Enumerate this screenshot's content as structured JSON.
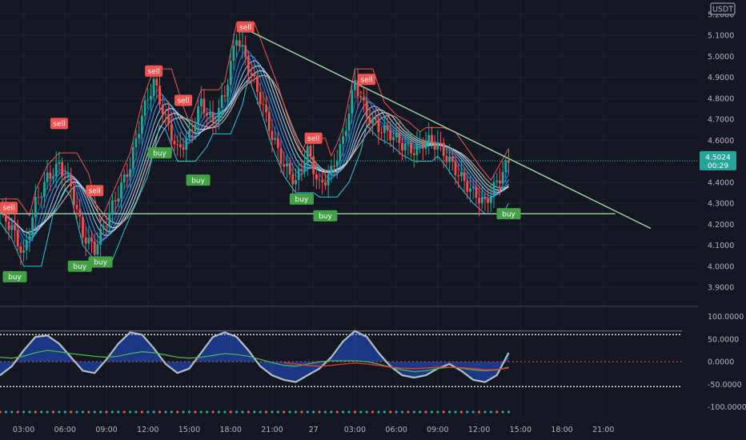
{
  "chart_data": {
    "type": "candlestick",
    "currency": "USDT",
    "price_axis": {
      "ticks": [
        "5.2000",
        "5.1000",
        "5.0000",
        "4.9000",
        "4.8000",
        "4.7000",
        "4.6000",
        "4.5000",
        "4.4000",
        "4.3000",
        "4.2000",
        "4.1000",
        "4.0000",
        "3.9000"
      ],
      "ylim": [
        3.82,
        5.23
      ]
    },
    "current_price": {
      "value": "4.5024",
      "countdown": "00:29",
      "color": "#26a69a"
    },
    "oscillator_axis": {
      "ticks": [
        "100.0000",
        "50.0000",
        "0.0000",
        "-50.0000",
        "-100.0000"
      ],
      "ylim": [
        -120,
        110
      ],
      "overbought": 60,
      "oversold": -55
    },
    "time_axis": {
      "labels": [
        "03:00",
        "06:00",
        "09:00",
        "12:00",
        "15:00",
        "18:00",
        "21:00",
        "27",
        "03:00",
        "06:00",
        "09:00",
        "12:00",
        "15:00",
        "18:00",
        "21:00"
      ]
    },
    "price_series": [
      {
        "x": 0,
        "y": 4.26
      },
      {
        "x": 4,
        "y": 4.18
      },
      {
        "x": 8,
        "y": 4.05
      },
      {
        "x": 12,
        "y": 4.3
      },
      {
        "x": 16,
        "y": 4.42
      },
      {
        "x": 20,
        "y": 4.48
      },
      {
        "x": 24,
        "y": 4.38
      },
      {
        "x": 28,
        "y": 4.15
      },
      {
        "x": 32,
        "y": 4.08
      },
      {
        "x": 36,
        "y": 4.22
      },
      {
        "x": 40,
        "y": 4.35
      },
      {
        "x": 44,
        "y": 4.48
      },
      {
        "x": 48,
        "y": 4.72
      },
      {
        "x": 52,
        "y": 4.88
      },
      {
        "x": 56,
        "y": 4.7
      },
      {
        "x": 60,
        "y": 4.55
      },
      {
        "x": 64,
        "y": 4.62
      },
      {
        "x": 68,
        "y": 4.78
      },
      {
        "x": 72,
        "y": 4.68
      },
      {
        "x": 76,
        "y": 4.82
      },
      {
        "x": 80,
        "y": 5.1
      },
      {
        "x": 84,
        "y": 4.95
      },
      {
        "x": 88,
        "y": 4.8
      },
      {
        "x": 92,
        "y": 4.62
      },
      {
        "x": 96,
        "y": 4.48
      },
      {
        "x": 100,
        "y": 4.4
      },
      {
        "x": 104,
        "y": 4.55
      },
      {
        "x": 108,
        "y": 4.38
      },
      {
        "x": 112,
        "y": 4.45
      },
      {
        "x": 116,
        "y": 4.6
      },
      {
        "x": 120,
        "y": 4.88
      },
      {
        "x": 124,
        "y": 4.72
      },
      {
        "x": 128,
        "y": 4.66
      },
      {
        "x": 132,
        "y": 4.63
      },
      {
        "x": 136,
        "y": 4.58
      },
      {
        "x": 140,
        "y": 4.55
      },
      {
        "x": 144,
        "y": 4.6
      },
      {
        "x": 148,
        "y": 4.58
      },
      {
        "x": 152,
        "y": 4.5
      },
      {
        "x": 156,
        "y": 4.42
      },
      {
        "x": 160,
        "y": 4.35
      },
      {
        "x": 164,
        "y": 4.3
      },
      {
        "x": 168,
        "y": 4.4
      },
      {
        "x": 172,
        "y": 4.5
      }
    ],
    "signals": [
      {
        "label": "sell",
        "x": 3,
        "y": 4.28,
        "kind": "sell"
      },
      {
        "label": "buy",
        "x": 5,
        "y": 3.95,
        "kind": "buy"
      },
      {
        "label": "sell",
        "x": 20,
        "y": 4.68,
        "kind": "sell"
      },
      {
        "label": "buy",
        "x": 27,
        "y": 4.0,
        "kind": "buy"
      },
      {
        "label": "sell",
        "x": 32,
        "y": 4.36,
        "kind": "sell"
      },
      {
        "label": "buy",
        "x": 34,
        "y": 4.02,
        "kind": "buy"
      },
      {
        "label": "sell",
        "x": 52,
        "y": 4.93,
        "kind": "sell"
      },
      {
        "label": "buy",
        "x": 54,
        "y": 4.54,
        "kind": "buy"
      },
      {
        "label": "sell",
        "x": 62,
        "y": 4.79,
        "kind": "sell"
      },
      {
        "label": "buy",
        "x": 67,
        "y": 4.41,
        "kind": "buy"
      },
      {
        "label": "sell",
        "x": 83,
        "y": 5.14,
        "kind": "sell"
      },
      {
        "label": "sell",
        "x": 106,
        "y": 4.61,
        "kind": "sell"
      },
      {
        "label": "buy",
        "x": 102,
        "y": 4.32,
        "kind": "buy"
      },
      {
        "label": "buy",
        "x": 110,
        "y": 4.24,
        "kind": "buy"
      },
      {
        "label": "sell",
        "x": 124,
        "y": 4.89,
        "kind": "sell"
      },
      {
        "label": "buy",
        "x": 172,
        "y": 4.25,
        "kind": "buy"
      }
    ],
    "trendlines": [
      {
        "name": "descending-trendline",
        "from": {
          "x": 83,
          "y": 5.13
        },
        "to": {
          "x": 220,
          "y": 4.18
        }
      },
      {
        "name": "support-line",
        "from": {
          "x": 0,
          "y": 4.25
        },
        "to": {
          "x": 208,
          "y": 4.25
        }
      }
    ],
    "oscillator_series": [
      {
        "name": "",
        "color": "#5b8fd6",
        "values": [
          -30,
          -10,
          25,
          55,
          58,
          40,
          10,
          -20,
          -25,
          5,
          40,
          65,
          60,
          30,
          -5,
          -25,
          -15,
          20,
          55,
          65,
          55,
          25,
          -10,
          -30,
          -40,
          -45,
          -30,
          -15,
          10,
          45,
          68,
          55,
          20,
          -10,
          -30,
          -35,
          -30,
          -15,
          -5,
          -20,
          -40,
          -45,
          -30,
          20
        ]
      },
      {
        "name": "",
        "color": "#4caf50",
        "values": [
          10,
          8,
          12,
          20,
          25,
          22,
          18,
          15,
          12,
          10,
          12,
          18,
          22,
          20,
          15,
          10,
          8,
          10,
          14,
          18,
          16,
          12,
          5,
          -2,
          -8,
          -10,
          -5,
          0,
          2,
          2,
          2,
          0,
          -5,
          -12,
          -18,
          -22,
          -20,
          -15,
          -12,
          -14,
          -18,
          -20,
          -18,
          -12
        ]
      },
      {
        "name": "",
        "color": "#e53935",
        "values": [
          null,
          null,
          null,
          null,
          null,
          null,
          null,
          null,
          null,
          null,
          null,
          null,
          null,
          null,
          null,
          null,
          null,
          null,
          null,
          null,
          null,
          null,
          null,
          null,
          -2,
          -5,
          -8,
          -10,
          -8,
          -5,
          -3,
          -5,
          -8,
          -12,
          -14,
          -15,
          -14,
          -12,
          -12,
          -13,
          -15,
          -18,
          -17,
          -14
        ]
      }
    ]
  }
}
